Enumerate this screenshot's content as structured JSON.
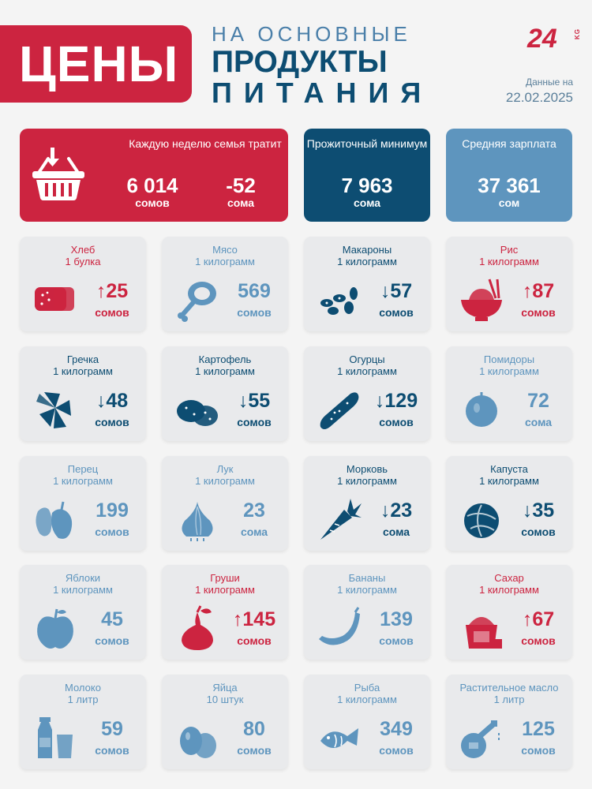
{
  "header": {
    "title": "ЦЕНЫ",
    "subtitle_line1": "НА ОСНОВНЫЕ",
    "subtitle_line2": "ПРОДУКТЫ",
    "subtitle_line3": "ПИТАНИЯ",
    "logo": "24",
    "logo_suffix": "KG",
    "date_label": "Данные на",
    "date_value": "22.02.2025"
  },
  "summary": {
    "weekly_label": "Каждую неделю семья тратит",
    "weekly_value": "6 014",
    "weekly_unit": "сомов",
    "weekly_change": "-52",
    "weekly_change_unit": "сома",
    "minimum_label": "Прожиточный минимум",
    "minimum_value": "7 963",
    "minimum_unit": "сома",
    "salary_label": "Средняя зарплата",
    "salary_value": "37 361",
    "salary_unit": "сом"
  },
  "products": [
    {
      "name": "Хлеб",
      "unit": "1 булка",
      "value": "↑25",
      "currency": "сомов",
      "color": "#cc2440",
      "icon": "bread-icon"
    },
    {
      "name": "Мясо",
      "unit": "1 килограмм",
      "value": "569",
      "currency": "сомов",
      "color": "#5e95be",
      "icon": "meat-icon"
    },
    {
      "name": "Макароны",
      "unit": "1 килограмм",
      "value": "↓57",
      "currency": "сомов",
      "color": "#0d4d72",
      "icon": "pasta-icon"
    },
    {
      "name": "Рис",
      "unit": "1 килограмм",
      "value": "↑87",
      "currency": "сомов",
      "color": "#cc2440",
      "icon": "rice-icon"
    },
    {
      "name": "Гречка",
      "unit": "1 килограмм",
      "value": "↓48",
      "currency": "сомов",
      "color": "#0d4d72",
      "icon": "buckwheat-icon"
    },
    {
      "name": "Картофель",
      "unit": "1 килограмм",
      "value": "↓55",
      "currency": "сомов",
      "color": "#0d4d72",
      "icon": "potato-icon"
    },
    {
      "name": "Огурцы",
      "unit": "1 килограмм",
      "value": "↓129",
      "currency": "сомов",
      "color": "#0d4d72",
      "icon": "cucumber-icon"
    },
    {
      "name": "Помидоры",
      "unit": "1 килограмм",
      "value": "72",
      "currency": "сома",
      "color": "#5e95be",
      "icon": "tomato-icon"
    },
    {
      "name": "Перец",
      "unit": "1 килограмм",
      "value": "199",
      "currency": "сомов",
      "color": "#5e95be",
      "icon": "pepper-icon"
    },
    {
      "name": "Лук",
      "unit": "1 килограмм",
      "value": "23",
      "currency": "сома",
      "color": "#5e95be",
      "icon": "onion-icon"
    },
    {
      "name": "Морковь",
      "unit": "1 килограмм",
      "value": "↓23",
      "currency": "сома",
      "color": "#0d4d72",
      "icon": "carrot-icon"
    },
    {
      "name": "Капуста",
      "unit": "1 килограмм",
      "value": "↓35",
      "currency": "сомов",
      "color": "#0d4d72",
      "icon": "cabbage-icon"
    },
    {
      "name": "Яблоки",
      "unit": "1 килограмм",
      "value": "45",
      "currency": "сомов",
      "color": "#5e95be",
      "icon": "apple-icon"
    },
    {
      "name": "Груши",
      "unit": "1 килограмм",
      "value": "↑145",
      "currency": "сомов",
      "color": "#cc2440",
      "icon": "pear-icon"
    },
    {
      "name": "Бананы",
      "unit": "1 килограмм",
      "value": "139",
      "currency": "сомов",
      "color": "#5e95be",
      "icon": "banana-icon"
    },
    {
      "name": "Сахар",
      "unit": "1 килограмм",
      "value": "↑67",
      "currency": "сомов",
      "color": "#cc2440",
      "icon": "sugar-icon"
    },
    {
      "name": "Молоко",
      "unit": "1 литр",
      "value": "59",
      "currency": "сомов",
      "color": "#5e95be",
      "icon": "milk-icon"
    },
    {
      "name": "Яйца",
      "unit": "10 штук",
      "value": "80",
      "currency": "сомов",
      "color": "#5e95be",
      "icon": "eggs-icon"
    },
    {
      "name": "Рыба",
      "unit": "1 килограмм",
      "value": "349",
      "currency": "сомов",
      "color": "#5e95be",
      "icon": "fish-icon"
    },
    {
      "name": "Растительное масло",
      "unit": "1 литр",
      "value": "125",
      "currency": "сомов",
      "color": "#5e95be",
      "icon": "oil-icon"
    }
  ]
}
